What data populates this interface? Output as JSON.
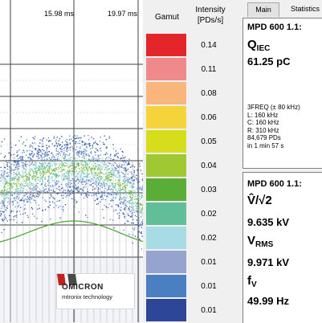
{
  "plot": {
    "time_labels": [
      "15.98 ms",
      "19.97 ms"
    ]
  },
  "logo": {
    "brand": "OMICRON",
    "sub": "mtronix technology"
  },
  "legend": {
    "gamut_title": "Gamut",
    "intensity_title_line1": "Intensity",
    "intensity_title_line2": "[PDs/s]",
    "levels": [
      {
        "color": "#e32629",
        "value": "0.14"
      },
      {
        "color": "#f08a8a",
        "value": "0.11"
      },
      {
        "color": "#f8b67c",
        "value": "0.08"
      },
      {
        "color": "#f4d43a",
        "value": "0.06"
      },
      {
        "color": "#d5dd1c",
        "value": "0.05"
      },
      {
        "color": "#a0c832",
        "value": "0.04"
      },
      {
        "color": "#5aae38",
        "value": "0.03"
      },
      {
        "color": "#62be98",
        "value": "0.02"
      },
      {
        "color": "#a8dce5",
        "value": "0.02"
      },
      {
        "color": "#97a3cf",
        "value": "0.01"
      },
      {
        "color": "#4a7fc1",
        "value": "0.01"
      },
      {
        "color": "#2d4698",
        "value": "0.01"
      }
    ]
  },
  "tabs": {
    "main": "Main",
    "statistics": "Statistics"
  },
  "panel1": {
    "title": "MPD 600 1.1:",
    "quantity_main": "Q",
    "quantity_sub": "IEC",
    "value": "61.25 pC",
    "info": [
      "3FREQ (± 80 kHz)",
      "L: 160 kHz",
      "C: 160 kHz",
      "R: 310 kHz",
      "84,679 PDs",
      "in  1 min 57 s"
    ]
  },
  "panel2": {
    "title": "MPD 600 1.1:",
    "vpeak_label": "V̂/√2",
    "vpeak_value": "9.635 kV",
    "vrms_main": "V",
    "vrms_sub": "RMS",
    "vrms_value": "9.971 kV",
    "fv_main": "f",
    "fv_sub": "V",
    "fv_value": "49.99 Hz"
  }
}
